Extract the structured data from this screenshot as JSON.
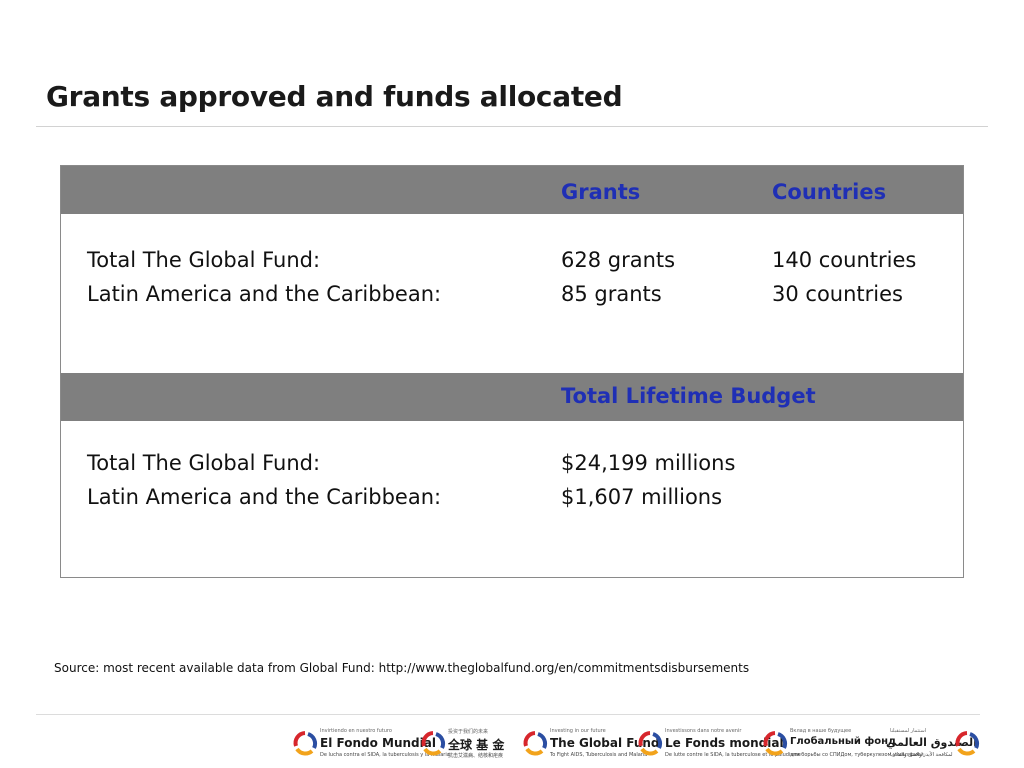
{
  "slide": {
    "title": "Grants approved and funds allocated",
    "source": "Source: most recent available data from Global Fund: http://www.theglobalfund.org/en/commitmentsdisbursements"
  },
  "table": {
    "section1": {
      "headers": [
        "Grants",
        "Countries"
      ],
      "rows": [
        {
          "label": "Total The Global Fund:",
          "grants": "628 grants",
          "countries": "140 countries"
        },
        {
          "label": "Latin America and the Caribbean:",
          "grants": "85 grants",
          "countries": "30 countries"
        }
      ]
    },
    "section2": {
      "header": "Total Lifetime Budget",
      "rows": [
        {
          "label": "Total The Global Fund:",
          "budget": "$24,199 millions"
        },
        {
          "label": "Latin America and the Caribbean:",
          "budget": "$1,607 millions"
        }
      ]
    }
  },
  "footer_logos": [
    {
      "name": "El Fondo Mundial",
      "tagline": "Invirtiendo en nuestro futuro",
      "sub": "De lucha contra el SIDA, la tuberculosis y la malaria"
    },
    {
      "name": "全球 基 金",
      "tagline": "投资于我们的未来",
      "sub": "抗击艾滋病、结核和疟疾"
    },
    {
      "name": "The Global Fund",
      "tagline": "Investing in our future",
      "sub": "To Fight AIDS, Tuberculosis and Malaria"
    },
    {
      "name": "Le Fonds mondial",
      "tagline": "Investissons dans notre avenir",
      "sub": "De lutte contre le SIDA, la tuberculose et le paludisme"
    },
    {
      "name": "Глобальный фонд",
      "tagline": "Вклад в наше будущее",
      "sub": "для борьбы со СПИДом, туберкулезом и малярией"
    },
    {
      "name": "الصندوق العالمي",
      "tagline": "استثمار لمستقبلنا",
      "sub": "لمكافحة الأيدز والسل والملاريا"
    }
  ],
  "colors": {
    "header_band": "#7f7f7f",
    "header_text": "#1f2fb5",
    "logo_red": "#d7262c",
    "logo_orange": "#f2a31b",
    "logo_blue": "#2b4ea2"
  }
}
